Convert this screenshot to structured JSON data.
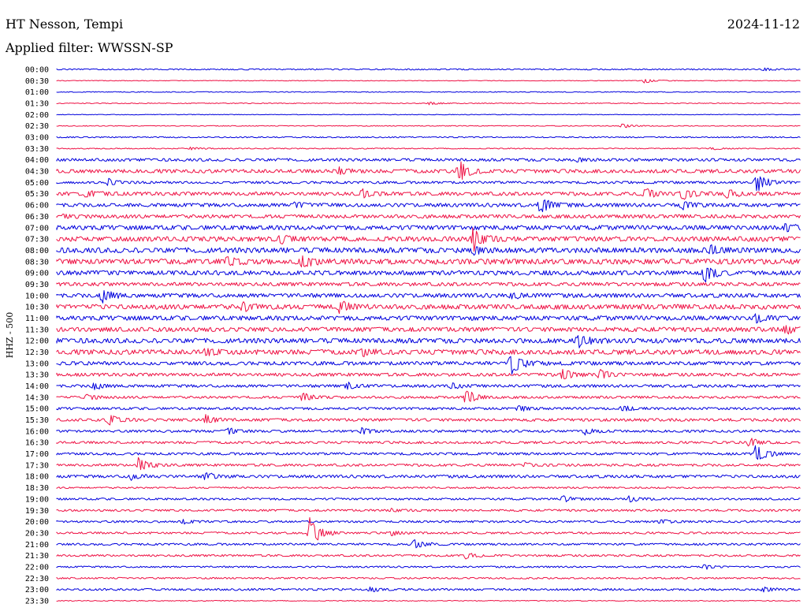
{
  "header": {
    "station": "HT Nesson, Tempi",
    "date": "2024-11-12",
    "filter": "Applied filter: WWSSN-SP"
  },
  "chart_data": {
    "type": "line",
    "ylabel": "HHZ - 500",
    "colors": [
      "#0000dd",
      "#ee1144"
    ],
    "rows": [
      {
        "label": "00:00",
        "noise": 0.6,
        "events": [
          {
            "x": 0.95,
            "amp": 2
          }
        ]
      },
      {
        "label": "00:30",
        "noise": 0.3,
        "events": [
          {
            "x": 0.79,
            "amp": 3
          }
        ]
      },
      {
        "label": "01:00",
        "noise": 0.4,
        "events": []
      },
      {
        "label": "01:30",
        "noise": 0.4,
        "events": [
          {
            "x": 0.5,
            "amp": 2
          }
        ]
      },
      {
        "label": "02:00",
        "noise": 0.3,
        "events": []
      },
      {
        "label": "02:30",
        "noise": 0.4,
        "events": [
          {
            "x": 0.76,
            "amp": 3
          }
        ]
      },
      {
        "label": "03:00",
        "noise": 0.6,
        "events": []
      },
      {
        "label": "03:30",
        "noise": 0.5,
        "events": [
          {
            "x": 0.18,
            "amp": 2
          },
          {
            "x": 0.88,
            "amp": 2
          }
        ]
      },
      {
        "label": "04:00",
        "noise": 1.4,
        "events": [
          {
            "x": 0.7,
            "amp": 3
          }
        ]
      },
      {
        "label": "04:30",
        "noise": 1.8,
        "events": [
          {
            "x": 0.54,
            "amp": 14
          },
          {
            "x": 0.38,
            "amp": 4
          }
        ]
      },
      {
        "label": "05:00",
        "noise": 1.2,
        "events": [
          {
            "x": 0.07,
            "amp": 4
          },
          {
            "x": 0.94,
            "amp": 14
          }
        ]
      },
      {
        "label": "05:30",
        "noise": 1.8,
        "events": [
          {
            "x": 0.04,
            "amp": 6
          },
          {
            "x": 0.41,
            "amp": 5
          },
          {
            "x": 0.79,
            "amp": 8
          },
          {
            "x": 0.84,
            "amp": 8
          },
          {
            "x": 0.9,
            "amp": 6
          }
        ]
      },
      {
        "label": "06:00",
        "noise": 1.8,
        "events": [
          {
            "x": 0.65,
            "amp": 13
          },
          {
            "x": 0.32,
            "amp": 4
          },
          {
            "x": 0.84,
            "amp": 5
          }
        ]
      },
      {
        "label": "06:30",
        "noise": 1.8,
        "events": [
          {
            "x": 0.01,
            "amp": 3
          }
        ]
      },
      {
        "label": "07:00",
        "noise": 2.2,
        "events": [
          {
            "x": 0.98,
            "amp": 6
          }
        ]
      },
      {
        "label": "07:30",
        "noise": 2.4,
        "events": [
          {
            "x": 0.56,
            "amp": 18
          },
          {
            "x": 0.3,
            "amp": 5
          }
        ]
      },
      {
        "label": "08:00",
        "noise": 2.6,
        "events": [
          {
            "x": 0.56,
            "amp": 6
          },
          {
            "x": 0.88,
            "amp": 5
          }
        ]
      },
      {
        "label": "08:30",
        "noise": 2.6,
        "events": [
          {
            "x": 0.23,
            "amp": 7
          },
          {
            "x": 0.33,
            "amp": 8
          }
        ]
      },
      {
        "label": "09:00",
        "noise": 2.2,
        "events": [
          {
            "x": 0.87,
            "amp": 14
          }
        ]
      },
      {
        "label": "09:30",
        "noise": 1.8,
        "events": []
      },
      {
        "label": "10:00",
        "noise": 2.0,
        "events": [
          {
            "x": 0.06,
            "amp": 10
          },
          {
            "x": 0.61,
            "amp": 4
          }
        ]
      },
      {
        "label": "10:30",
        "noise": 2.4,
        "events": [
          {
            "x": 0.25,
            "amp": 6
          },
          {
            "x": 0.38,
            "amp": 7
          }
        ]
      },
      {
        "label": "11:00",
        "noise": 2.2,
        "events": [
          {
            "x": 0.94,
            "amp": 5
          }
        ]
      },
      {
        "label": "11:30",
        "noise": 2.2,
        "events": [
          {
            "x": 0.98,
            "amp": 5
          }
        ]
      },
      {
        "label": "12:00",
        "noise": 2.4,
        "events": [
          {
            "x": 0.7,
            "amp": 10
          }
        ]
      },
      {
        "label": "12:30",
        "noise": 2.4,
        "events": [
          {
            "x": 0.41,
            "amp": 5
          },
          {
            "x": 0.2,
            "amp": 4
          }
        ]
      },
      {
        "label": "13:00",
        "noise": 1.8,
        "events": [
          {
            "x": 0.61,
            "amp": 15
          }
        ]
      },
      {
        "label": "13:30",
        "noise": 1.6,
        "events": [
          {
            "x": 0.68,
            "amp": 7
          },
          {
            "x": 0.73,
            "amp": 6
          }
        ]
      },
      {
        "label": "14:00",
        "noise": 1.4,
        "events": [
          {
            "x": 0.05,
            "amp": 5
          },
          {
            "x": 0.39,
            "amp": 5
          },
          {
            "x": 0.53,
            "amp": 4
          }
        ]
      },
      {
        "label": "14:30",
        "noise": 1.2,
        "events": [
          {
            "x": 0.55,
            "amp": 11
          },
          {
            "x": 0.33,
            "amp": 6
          },
          {
            "x": 0.04,
            "amp": 4
          }
        ]
      },
      {
        "label": "15:00",
        "noise": 1.2,
        "events": [
          {
            "x": 0.62,
            "amp": 4
          },
          {
            "x": 0.76,
            "amp": 4
          }
        ]
      },
      {
        "label": "15:30",
        "noise": 1.4,
        "events": [
          {
            "x": 0.07,
            "amp": 7
          },
          {
            "x": 0.2,
            "amp": 6
          }
        ]
      },
      {
        "label": "16:00",
        "noise": 1.2,
        "events": [
          {
            "x": 0.23,
            "amp": 4
          },
          {
            "x": 0.41,
            "amp": 4
          },
          {
            "x": 0.71,
            "amp": 4
          }
        ]
      },
      {
        "label": "16:30",
        "noise": 1.2,
        "events": [
          {
            "x": 0.93,
            "amp": 6
          }
        ]
      },
      {
        "label": "17:00",
        "noise": 1.2,
        "events": [
          {
            "x": 0.94,
            "amp": 13
          }
        ]
      },
      {
        "label": "17:30",
        "noise": 1.2,
        "events": [
          {
            "x": 0.11,
            "amp": 10
          },
          {
            "x": 0.63,
            "amp": 3
          }
        ]
      },
      {
        "label": "18:00",
        "noise": 1.4,
        "events": [
          {
            "x": 0.1,
            "amp": 4
          },
          {
            "x": 0.2,
            "amp": 5
          }
        ]
      },
      {
        "label": "18:30",
        "noise": 0.8,
        "events": []
      },
      {
        "label": "19:00",
        "noise": 1.0,
        "events": [
          {
            "x": 0.68,
            "amp": 4
          },
          {
            "x": 0.77,
            "amp": 4
          }
        ]
      },
      {
        "label": "19:30",
        "noise": 1.0,
        "events": [
          {
            "x": 0.45,
            "amp": 3
          }
        ]
      },
      {
        "label": "20:00",
        "noise": 1.0,
        "events": [
          {
            "x": 0.17,
            "amp": 3
          },
          {
            "x": 0.81,
            "amp": 3
          }
        ]
      },
      {
        "label": "20:30",
        "noise": 1.0,
        "events": [
          {
            "x": 0.34,
            "amp": 22
          },
          {
            "x": 0.45,
            "amp": 3
          }
        ]
      },
      {
        "label": "21:00",
        "noise": 1.0,
        "events": [
          {
            "x": 0.48,
            "amp": 6
          }
        ]
      },
      {
        "label": "21:30",
        "noise": 1.0,
        "events": [
          {
            "x": 0.55,
            "amp": 4
          }
        ]
      },
      {
        "label": "22:00",
        "noise": 0.8,
        "events": [
          {
            "x": 0.87,
            "amp": 3
          }
        ]
      },
      {
        "label": "22:30",
        "noise": 0.8,
        "events": []
      },
      {
        "label": "23:00",
        "noise": 1.0,
        "events": [
          {
            "x": 0.42,
            "amp": 4
          },
          {
            "x": 0.95,
            "amp": 4
          }
        ]
      },
      {
        "label": "23:30",
        "noise": 0.4,
        "events": []
      }
    ]
  }
}
